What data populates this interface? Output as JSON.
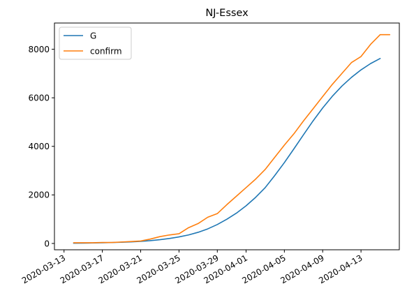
{
  "chart_data": {
    "type": "line",
    "title": "NJ-Essex",
    "xlabel": "",
    "ylabel": "",
    "ylim": [
      -260,
      9080
    ],
    "xlim": [
      "2020-03-12",
      "2020-04-17"
    ],
    "x_ticks": [
      "2020-03-13",
      "2020-03-17",
      "2020-03-21",
      "2020-03-25",
      "2020-03-29",
      "2020-04-01",
      "2020-04-05",
      "2020-04-09",
      "2020-04-13"
    ],
    "y_ticks": [
      0,
      2000,
      4000,
      6000,
      8000
    ],
    "grid": false,
    "legend_position": "top-left",
    "colors": {
      "G": "#1f77b4",
      "confirm": "#ff7f0e"
    },
    "series": [
      {
        "name": "G",
        "x": [
          "2020-03-14",
          "2020-03-15",
          "2020-03-16",
          "2020-03-17",
          "2020-03-18",
          "2020-03-19",
          "2020-03-20",
          "2020-03-21",
          "2020-03-22",
          "2020-03-23",
          "2020-03-24",
          "2020-03-25",
          "2020-03-26",
          "2020-03-27",
          "2020-03-28",
          "2020-03-29",
          "2020-03-30",
          "2020-03-31",
          "2020-04-01",
          "2020-04-02",
          "2020-04-03",
          "2020-04-04",
          "2020-04-05",
          "2020-04-06",
          "2020-04-07",
          "2020-04-08",
          "2020-04-09",
          "2020-04-10",
          "2020-04-11",
          "2020-04-12",
          "2020-04-13",
          "2020-04-14",
          "2020-04-15"
        ],
        "values": [
          10,
          15,
          20,
          28,
          38,
          50,
          65,
          85,
          115,
          155,
          205,
          270,
          350,
          460,
          600,
          780,
          1000,
          1250,
          1550,
          1900,
          2300,
          2800,
          3330,
          3900,
          4480,
          5050,
          5580,
          6060,
          6480,
          6840,
          7150,
          7410,
          7620
        ]
      },
      {
        "name": "confirm",
        "x": [
          "2020-03-14",
          "2020-03-15",
          "2020-03-16",
          "2020-03-17",
          "2020-03-18",
          "2020-03-19",
          "2020-03-20",
          "2020-03-21",
          "2020-03-22",
          "2020-03-23",
          "2020-03-24",
          "2020-03-25",
          "2020-03-26",
          "2020-03-27",
          "2020-03-28",
          "2020-03-29",
          "2020-03-30",
          "2020-03-31",
          "2020-04-01",
          "2020-04-02",
          "2020-04-03",
          "2020-04-04",
          "2020-04-05",
          "2020-04-06",
          "2020-04-07",
          "2020-04-08",
          "2020-04-09",
          "2020-04-10",
          "2020-04-11",
          "2020-04-12",
          "2020-04-13",
          "2020-04-14",
          "2020-04-15",
          "2020-04-16"
        ],
        "values": [
          30,
          30,
          30,
          40,
          40,
          60,
          80,
          100,
          180,
          280,
          350,
          400,
          650,
          820,
          1080,
          1230,
          1600,
          1950,
          2300,
          2650,
          3050,
          3550,
          4050,
          4520,
          5050,
          5550,
          6050,
          6550,
          7000,
          7450,
          7700,
          8200,
          8600,
          8600
        ]
      }
    ]
  }
}
